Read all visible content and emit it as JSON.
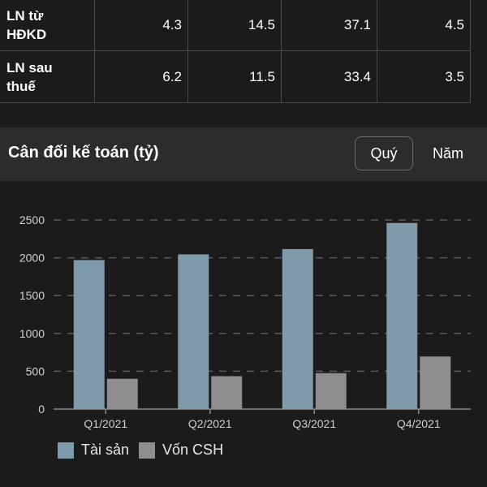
{
  "table": {
    "rows": [
      {
        "label_line1": "LN từ",
        "label_line2": "HĐKD",
        "values": [
          "4.3",
          "14.5",
          "37.1",
          "4.5"
        ]
      },
      {
        "label_line1": "LN sau",
        "label_line2": "thuế",
        "values": [
          "6.2",
          "11.5",
          "33.4",
          "3.5"
        ]
      }
    ]
  },
  "section": {
    "title": "Cân đối kế toán (tỷ)",
    "tab_quarter": "Quý",
    "tab_year": "Năm",
    "active_tab": "Quý"
  },
  "chart_data": {
    "type": "bar",
    "categories": [
      "Q1/2021",
      "Q2/2021",
      "Q3/2021",
      "Q4/2021"
    ],
    "series": [
      {
        "name": "Tài sản",
        "values": [
          1970,
          2045,
          2115,
          2460
        ],
        "color": "#7f9aab"
      },
      {
        "name": "Vốn CSH",
        "values": [
          400,
          435,
          475,
          695
        ],
        "color": "#8e8e8e"
      }
    ],
    "ylim": [
      0,
      2500
    ],
    "yticks": [
      0,
      500,
      1000,
      1500,
      2000,
      2500
    ],
    "grid": true,
    "legend_position": "bottom-left"
  },
  "colors": {
    "background": "#1b1b1c",
    "header_bg": "#2c2c2e",
    "grid": "#5a5a5c"
  }
}
